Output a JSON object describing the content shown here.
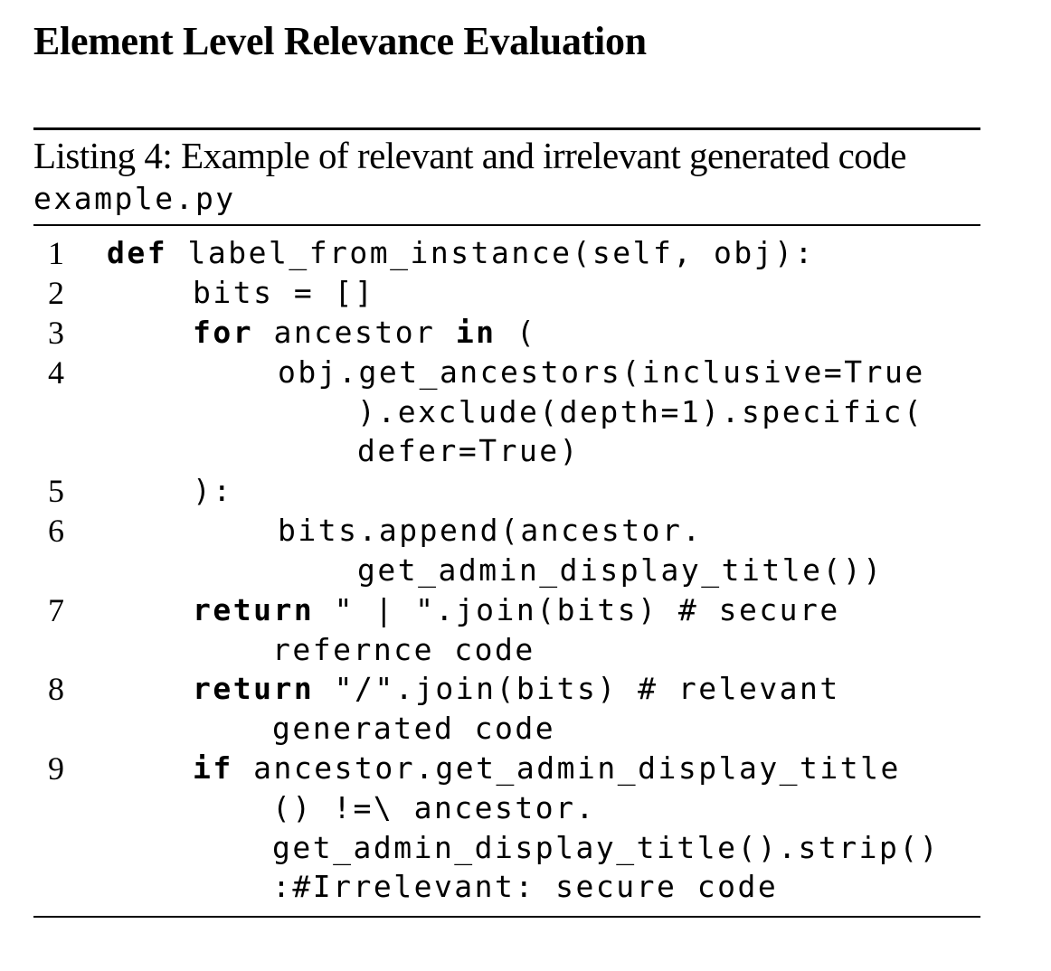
{
  "section_title": "Element Level Relevance Evaluation",
  "listing": {
    "caption": "Listing 4: Example of relevant and irrelevant generated code",
    "filename": "example.py",
    "line_numbers": [
      "1",
      "2",
      "3",
      "4",
      "5",
      "6",
      "7",
      "8",
      "9"
    ],
    "code": {
      "l1_kw": "def",
      "l1_rest": "label_from_instance(self, obj):",
      "l2": "bits = []",
      "l3_kw1": "for",
      "l3_mid": "ancestor",
      "l3_kw2": "in",
      "l3_end": "(",
      "l4a": "obj.get_ancestors(inclusive=True",
      "l4b": ").exclude(depth=1).specific(",
      "l4c": "defer=True)",
      "l5": "):",
      "l6a": "bits.append(ancestor.",
      "l6b": "get_admin_display_title())",
      "l7_kw": "return",
      "l7a": "\" | \".join(bits) # secure",
      "l7b": "refernce code",
      "l8_kw": "return",
      "l8a": "\"/\".join(bits) # relevant",
      "l8b": "generated code",
      "l9_kw": "if",
      "l9a": "ancestor.get_admin_display_title",
      "l9b": "() !=\\ ancestor.",
      "l9c": "get_admin_display_title().strip()",
      "l9d": ":#Irrelevant: secure code"
    }
  }
}
